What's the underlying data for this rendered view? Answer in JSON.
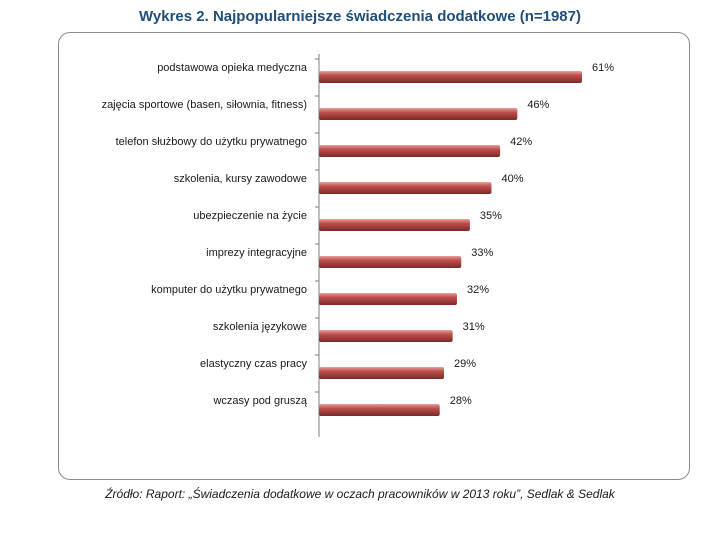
{
  "chart_data": {
    "type": "bar",
    "orientation": "horizontal",
    "title": "Wykres 2. Najpopularniejsze świadczenia dodatkowe (n=1987)",
    "categories": [
      "podstawowa opieka medyczna",
      "zajęcia sportowe (basen, siłownia, fitness)",
      "telefon służbowy do użytku prywatnego",
      "szkolenia, kursy zawodowe",
      "ubezpieczenie na życie",
      "imprezy integracyjne",
      "komputer do użytku prywatnego",
      "szkolenia językowe",
      "elastyczny czas pracy",
      "wczasy pod gruszą"
    ],
    "values": [
      61,
      46,
      42,
      40,
      35,
      33,
      32,
      31,
      29,
      28
    ],
    "value_labels": [
      "61%",
      "46%",
      "42%",
      "40%",
      "35%",
      "33%",
      "32%",
      "31%",
      "29%",
      "28%"
    ],
    "xlim": [
      0,
      61
    ],
    "grid": false,
    "bar_color": "#c0504d"
  },
  "source": "Źródło: Raport: „Świadczenia dodatkowe w oczach pracowników w 2013 roku”, Sedlak & Sedlak"
}
